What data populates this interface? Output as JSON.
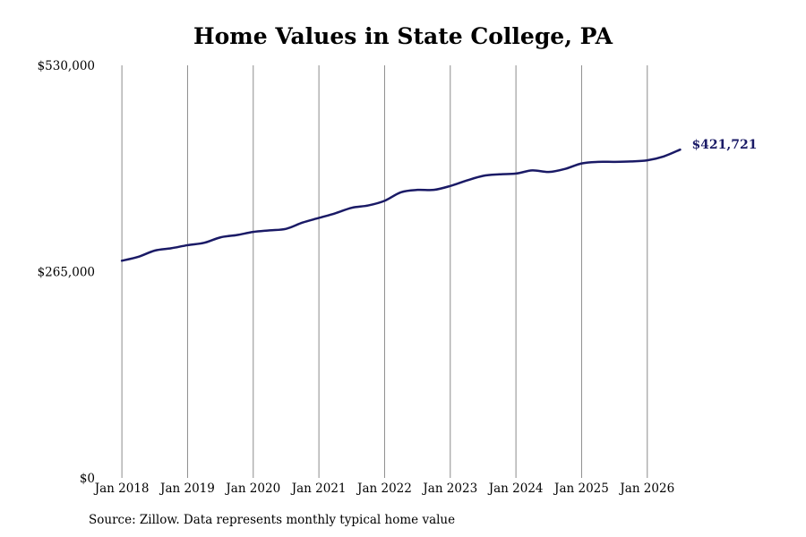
{
  "chart_data": {
    "type": "line",
    "title": "Home Values in State College, PA",
    "xlabel": "",
    "ylabel": "",
    "x_ticks": [
      "Jan 2018",
      "Jan 2019",
      "Jan 2020",
      "Jan 2021",
      "Jan 2022",
      "Jan 2023",
      "Jan 2024",
      "Jan 2025",
      "Jan 2026"
    ],
    "y_ticks": [
      "$0",
      "$265,000",
      "$530,000"
    ],
    "ylim": [
      0,
      530000
    ],
    "xlim": [
      "2017-12",
      "2026-12"
    ],
    "grid": "vertical",
    "series": [
      {
        "color": "#1a1a66",
        "end_label": "$421,721",
        "points": [
          [
            "2018-01",
            279000
          ],
          [
            "2018-04",
            284000
          ],
          [
            "2018-07",
            292000
          ],
          [
            "2018-10",
            295000
          ],
          [
            "2019-01",
            299000
          ],
          [
            "2019-04",
            302000
          ],
          [
            "2019-07",
            309000
          ],
          [
            "2019-10",
            312000
          ],
          [
            "2020-01",
            316000
          ],
          [
            "2020-04",
            318000
          ],
          [
            "2020-07",
            320000
          ],
          [
            "2020-10",
            328000
          ],
          [
            "2021-01",
            334000
          ],
          [
            "2021-04",
            340000
          ],
          [
            "2021-07",
            347000
          ],
          [
            "2021-10",
            350000
          ],
          [
            "2022-01",
            356000
          ],
          [
            "2022-04",
            367000
          ],
          [
            "2022-07",
            370000
          ],
          [
            "2022-10",
            370000
          ],
          [
            "2023-01",
            375000
          ],
          [
            "2023-04",
            382000
          ],
          [
            "2023-07",
            388000
          ],
          [
            "2023-10",
            390000
          ],
          [
            "2024-01",
            391000
          ],
          [
            "2024-04",
            395000
          ],
          [
            "2024-07",
            393000
          ],
          [
            "2024-10",
            397000
          ],
          [
            "2025-01",
            404000
          ],
          [
            "2025-04",
            406000
          ],
          [
            "2025-07",
            406000
          ],
          [
            "2025-10",
            406500
          ],
          [
            "2026-01",
            408000
          ],
          [
            "2026-04",
            413000
          ],
          [
            "2026-07",
            421721
          ]
        ]
      }
    ]
  },
  "source_note": "Source: Zillow. Data represents monthly typical home value"
}
